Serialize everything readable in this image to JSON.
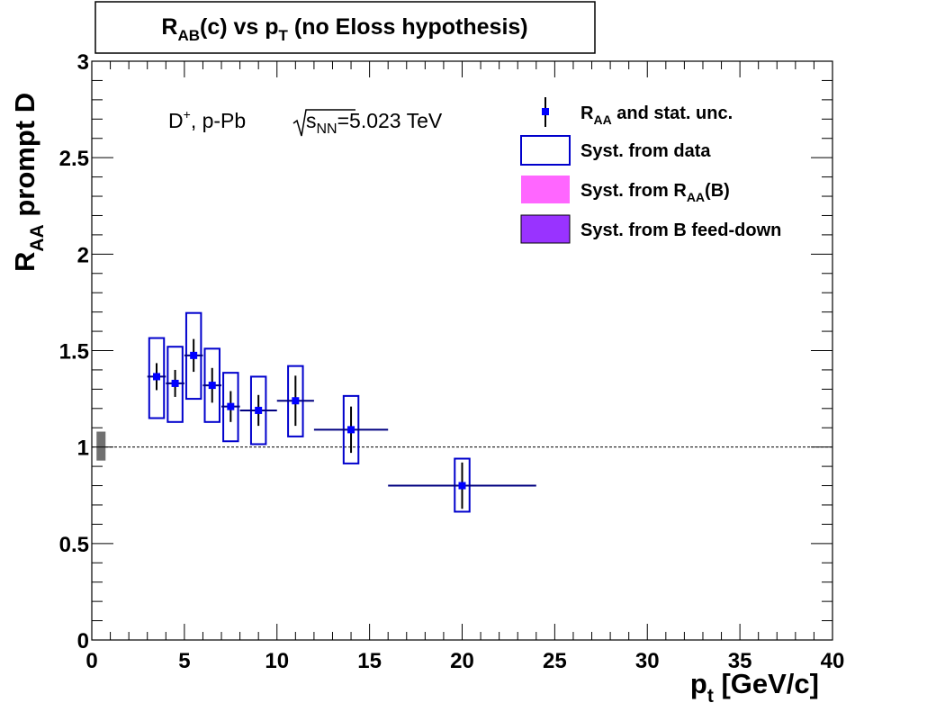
{
  "chart_data": {
    "type": "scatter",
    "title": {
      "main": "R",
      "sub1": "AB",
      "mid": "(c) vs p",
      "sub2": "T",
      "end": " (no Eloss hypothesis)"
    },
    "xlabel": {
      "main": "p",
      "sub": "t",
      "end": " [GeV/c]"
    },
    "ylabel": {
      "main": "R",
      "sub": "AA",
      "end": " prompt D"
    },
    "xlim": [
      0,
      40
    ],
    "ylim": [
      0,
      3
    ],
    "x_ticks": [
      0,
      5,
      10,
      15,
      20,
      25,
      30,
      35,
      40
    ],
    "x_tick_labels": [
      "0",
      "5",
      "10",
      "15",
      "20",
      "25",
      "30",
      "35",
      "40"
    ],
    "y_ticks": [
      0,
      0.5,
      1,
      1.5,
      2,
      2.5,
      3
    ],
    "y_tick_labels": [
      "0",
      "0.5",
      "1",
      "1.5",
      "2",
      "2.5",
      "3"
    ],
    "grid": false,
    "reference_line": {
      "y": 1,
      "style": "dotted"
    },
    "normalization_box": {
      "x": 0.5,
      "ylow": 0.93,
      "yhigh": 1.08,
      "color": "#707070"
    },
    "annotation": {
      "particle": "D",
      "charge": "+",
      "system": ",  p-Pb",
      "energy_var": "s",
      "energy_sub": "NN",
      "energy_value": "=5.023 TeV"
    },
    "legend": {
      "position": "top-right",
      "entries": [
        {
          "main": "R",
          "sub": "AA",
          "end": " and stat. unc.",
          "kind": "marker"
        },
        {
          "main": "Syst. from data",
          "kind": "open-box"
        },
        {
          "main": "Syst. from R",
          "sub": "AA",
          "end": "(B)",
          "kind": "fill-pink"
        },
        {
          "main": "Syst. from B feed-down",
          "kind": "fill-purple"
        }
      ]
    },
    "colors": {
      "marker": "#0000ff",
      "stat_error": "#000000",
      "syst_box": "#0000cc",
      "pink": "#ff66ff",
      "purple": "#9933ff"
    },
    "series": [
      {
        "x": [
          3.5,
          4.5,
          5.5,
          6.5,
          7.5,
          9.0,
          11.0,
          14.0,
          20.0
        ],
        "x_low": [
          3.0,
          4.0,
          5.0,
          6.0,
          7.0,
          8.0,
          10.0,
          12.0,
          16.0
        ],
        "x_high": [
          4.0,
          5.0,
          6.0,
          7.0,
          8.0,
          10.0,
          12.0,
          16.0,
          24.0
        ],
        "y": [
          1.365,
          1.33,
          1.475,
          1.32,
          1.21,
          1.19,
          1.24,
          1.09,
          0.8
        ],
        "stat_err": [
          0.07,
          0.07,
          0.085,
          0.09,
          0.08,
          0.08,
          0.13,
          0.12,
          0.12
        ],
        "syst_low": [
          1.15,
          1.13,
          1.25,
          1.13,
          1.03,
          1.015,
          1.055,
          0.915,
          0.665
        ],
        "syst_high": [
          1.565,
          1.52,
          1.695,
          1.51,
          1.385,
          1.365,
          1.42,
          1.265,
          0.94
        ],
        "syst_halfwidth": [
          0.4,
          0.4,
          0.4,
          0.4,
          0.4,
          0.4,
          0.4,
          0.4,
          0.4
        ]
      }
    ]
  }
}
